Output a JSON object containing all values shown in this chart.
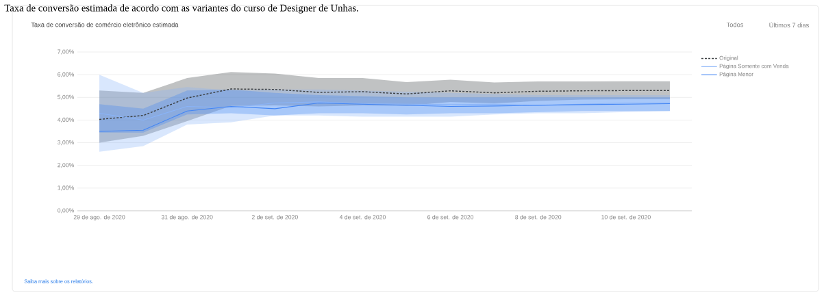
{
  "chart_data": {
    "type": "line",
    "title": "Taxa de conversão de comércio eletrônico estimada",
    "x": [
      "2020-08-29",
      "2020-08-30",
      "2020-08-31",
      "2020-09-01",
      "2020-09-02",
      "2020-09-03",
      "2020-09-04",
      "2020-09-05",
      "2020-09-06",
      "2020-09-07",
      "2020-09-08",
      "2020-09-09",
      "2020-09-10",
      "2020-09-11"
    ],
    "series": [
      {
        "name": "Original",
        "color": "#3c4043",
        "line_style": "dashed",
        "values": [
          4.03,
          4.2,
          4.97,
          5.37,
          5.35,
          5.22,
          5.25,
          5.15,
          5.29,
          5.2,
          5.27,
          5.29,
          5.3,
          5.3
        ],
        "lower": [
          3.0,
          3.3,
          3.95,
          4.62,
          4.65,
          4.6,
          4.65,
          4.63,
          4.8,
          4.74,
          4.84,
          4.9,
          4.92,
          4.92
        ],
        "upper": [
          5.3,
          5.2,
          5.85,
          6.12,
          6.05,
          5.85,
          5.85,
          5.67,
          5.78,
          5.66,
          5.7,
          5.7,
          5.71,
          5.71
        ]
      },
      {
        "name": "Página Somente com Venda",
        "color": "#8ab4f8",
        "line_style": "solid",
        "values": [
          4.3,
          4.0,
          4.6,
          4.55,
          4.75,
          4.8,
          4.72,
          4.7,
          4.68,
          4.7,
          4.65,
          4.7,
          4.75,
          4.75
        ],
        "lower": [
          2.6,
          2.85,
          3.8,
          3.9,
          4.2,
          4.2,
          4.15,
          4.15,
          4.15,
          4.25,
          4.3,
          4.3,
          4.35,
          4.4
        ],
        "upper": [
          6.0,
          5.2,
          5.45,
          5.3,
          5.35,
          5.35,
          5.3,
          5.25,
          5.2,
          5.15,
          5.1,
          5.1,
          5.1,
          5.1
        ]
      },
      {
        "name": "Página Menor",
        "color": "#4285f4",
        "line_style": "solid",
        "values": [
          3.5,
          3.55,
          4.4,
          4.6,
          4.5,
          4.75,
          4.7,
          4.65,
          4.6,
          4.62,
          4.65,
          4.68,
          4.7,
          4.72
        ],
        "lower": [
          3.45,
          3.45,
          4.25,
          4.3,
          4.2,
          4.3,
          4.3,
          4.25,
          4.3,
          4.3,
          4.35,
          4.4,
          4.4,
          4.4
        ],
        "upper": [
          4.7,
          4.5,
          5.3,
          5.35,
          5.2,
          5.1,
          5.05,
          5.0,
          5.0,
          5.0,
          5.0,
          5.0,
          5.0,
          5.0
        ]
      }
    ],
    "xlim": [
      "2020-08-28T12:00",
      "2020-09-11T12:00"
    ],
    "xticks": [
      {
        "value": "2020-08-29",
        "label": "29 de ago. de 2020"
      },
      {
        "value": "2020-08-31",
        "label": "31 de ago. de 2020"
      },
      {
        "value": "2020-09-02",
        "label": "2 de set. de 2020"
      },
      {
        "value": "2020-09-04",
        "label": "4 de set. de 2020"
      },
      {
        "value": "2020-09-06",
        "label": "6 de set. de 2020"
      },
      {
        "value": "2020-09-08",
        "label": "8 de set. de 2020"
      },
      {
        "value": "2020-09-10",
        "label": "10 de set. de 2020"
      }
    ],
    "ylim": [
      0,
      7
    ],
    "yticks": [
      {
        "value": 0,
        "label": "0,00%"
      },
      {
        "value": 1,
        "label": "1,00%"
      },
      {
        "value": 2,
        "label": "2,00%"
      },
      {
        "value": 3,
        "label": "3,00%"
      },
      {
        "value": 4,
        "label": "4,00%"
      },
      {
        "value": 5,
        "label": "5,00%"
      },
      {
        "value": 6,
        "label": "6,00%"
      },
      {
        "value": 7,
        "label": "7,00%"
      }
    ],
    "grid": "y",
    "legend": "top right",
    "marker": "none",
    "annotations": [
      "Taxa de conversão estimada de acordo com as variantes do curso de Designer de Unhas.",
      "Todos",
      "Últimos 7 dias",
      "Saiba mais sobre os relatórios."
    ]
  }
}
